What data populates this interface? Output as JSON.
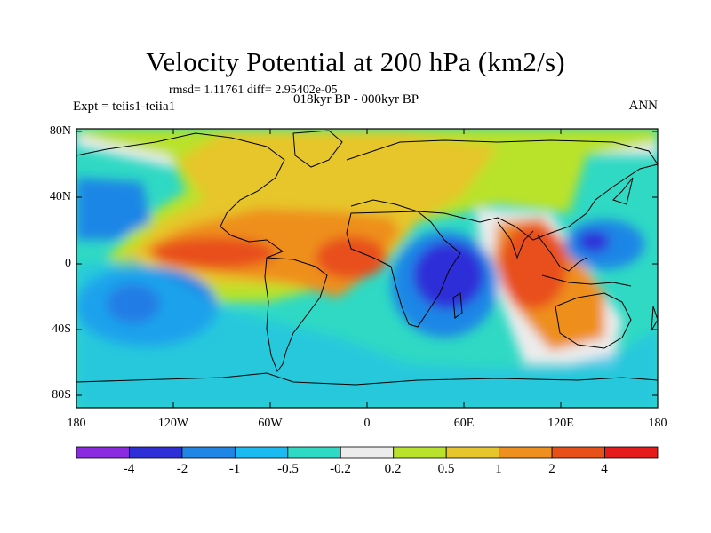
{
  "title": "Velocity Potential at 200 hPa (km2/s)",
  "stats_line": "rmsd= 1.11761 diff= 2.95402e-05",
  "experiment": "Expt = teiis1-teiia1",
  "period": "018kyr BP - 000kyr BP",
  "season": "ANN",
  "lat_labels": [
    "80N",
    "40N",
    "0",
    "40S",
    "80S"
  ],
  "lon_labels": [
    "180",
    "120W",
    "60W",
    "0",
    "60E",
    "120E",
    "180"
  ],
  "colorbar": {
    "colors": [
      "#8a2be2",
      "#2f2fd8",
      "#1f86e6",
      "#1bbaf0",
      "#2fd9c4",
      "#ececec",
      "#b9e22c",
      "#e6c62c",
      "#ee8f1e",
      "#e8501a",
      "#e51a1a"
    ],
    "labels": [
      "-4",
      "-2",
      "-1",
      "-0.5",
      "-0.2",
      "0.2",
      "0.5",
      "1",
      "2",
      "4"
    ]
  }
}
